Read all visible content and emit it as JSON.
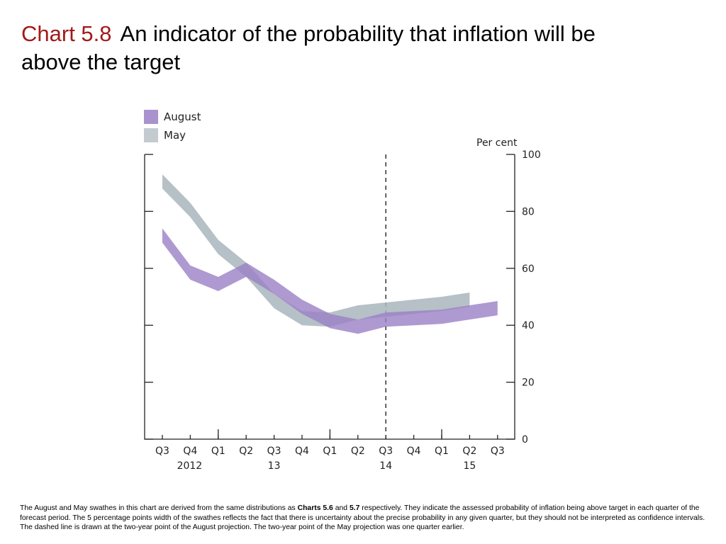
{
  "title": {
    "label": "Chart 5.8",
    "text": "An indicator of the probability that inflation will be above the target"
  },
  "colors": {
    "august": "#9b7fc6",
    "may": "#a9b5bd"
  },
  "chart_data": {
    "type": "area",
    "unit_label": "Per cent",
    "ylim": [
      0,
      100
    ],
    "yticks": [
      0,
      20,
      40,
      60,
      80,
      100
    ],
    "categories": [
      "Q3",
      "Q4",
      "Q1",
      "Q2",
      "Q3",
      "Q4",
      "Q1",
      "Q2",
      "Q3",
      "Q4",
      "Q1",
      "Q2",
      "Q3"
    ],
    "year_labels": [
      {
        "index": 1,
        "text": "2012"
      },
      {
        "index": 4,
        "text": "13"
      },
      {
        "index": 8,
        "text": "14"
      },
      {
        "index": 11,
        "text": "15"
      }
    ],
    "year_boundaries": [
      2,
      6,
      10
    ],
    "dashed_line_index": 8,
    "grid": false,
    "legend_position": "top-left",
    "series": [
      {
        "name": "August",
        "lower": [
          69,
          56,
          52,
          57,
          51,
          44,
          39,
          37,
          39.5,
          40,
          40.5,
          42,
          43.5
        ],
        "upper": [
          74,
          61,
          57,
          62,
          56,
          49,
          44,
          42,
          44.5,
          45,
          45.5,
          47,
          48.5
        ]
      },
      {
        "name": "May",
        "lower": [
          88,
          78,
          65,
          57,
          46,
          40,
          39.5,
          42,
          43,
          44,
          45,
          46.5
        ],
        "upper": [
          93,
          83,
          70,
          62,
          51,
          45,
          44.5,
          47,
          48,
          49,
          50,
          51.5
        ]
      }
    ]
  },
  "footnote": {
    "part1": "The August and May swathes in this chart are derived from the same distributions as ",
    "bold1": "Charts 5.6",
    "part2": " and ",
    "bold2": "5.7",
    "part3": " respectively.  They indicate the assessed probability of inflation being above target in each quarter of the forecast period.  The 5 percentage points width of the swathes reflects the fact that there is uncertainty about the precise probability in any given quarter, but they should not be interpreted as confidence intervals.  The dashed line is drawn at the two-year point of the August projection.  The two-year point of the May projection was one quarter earlier."
  }
}
